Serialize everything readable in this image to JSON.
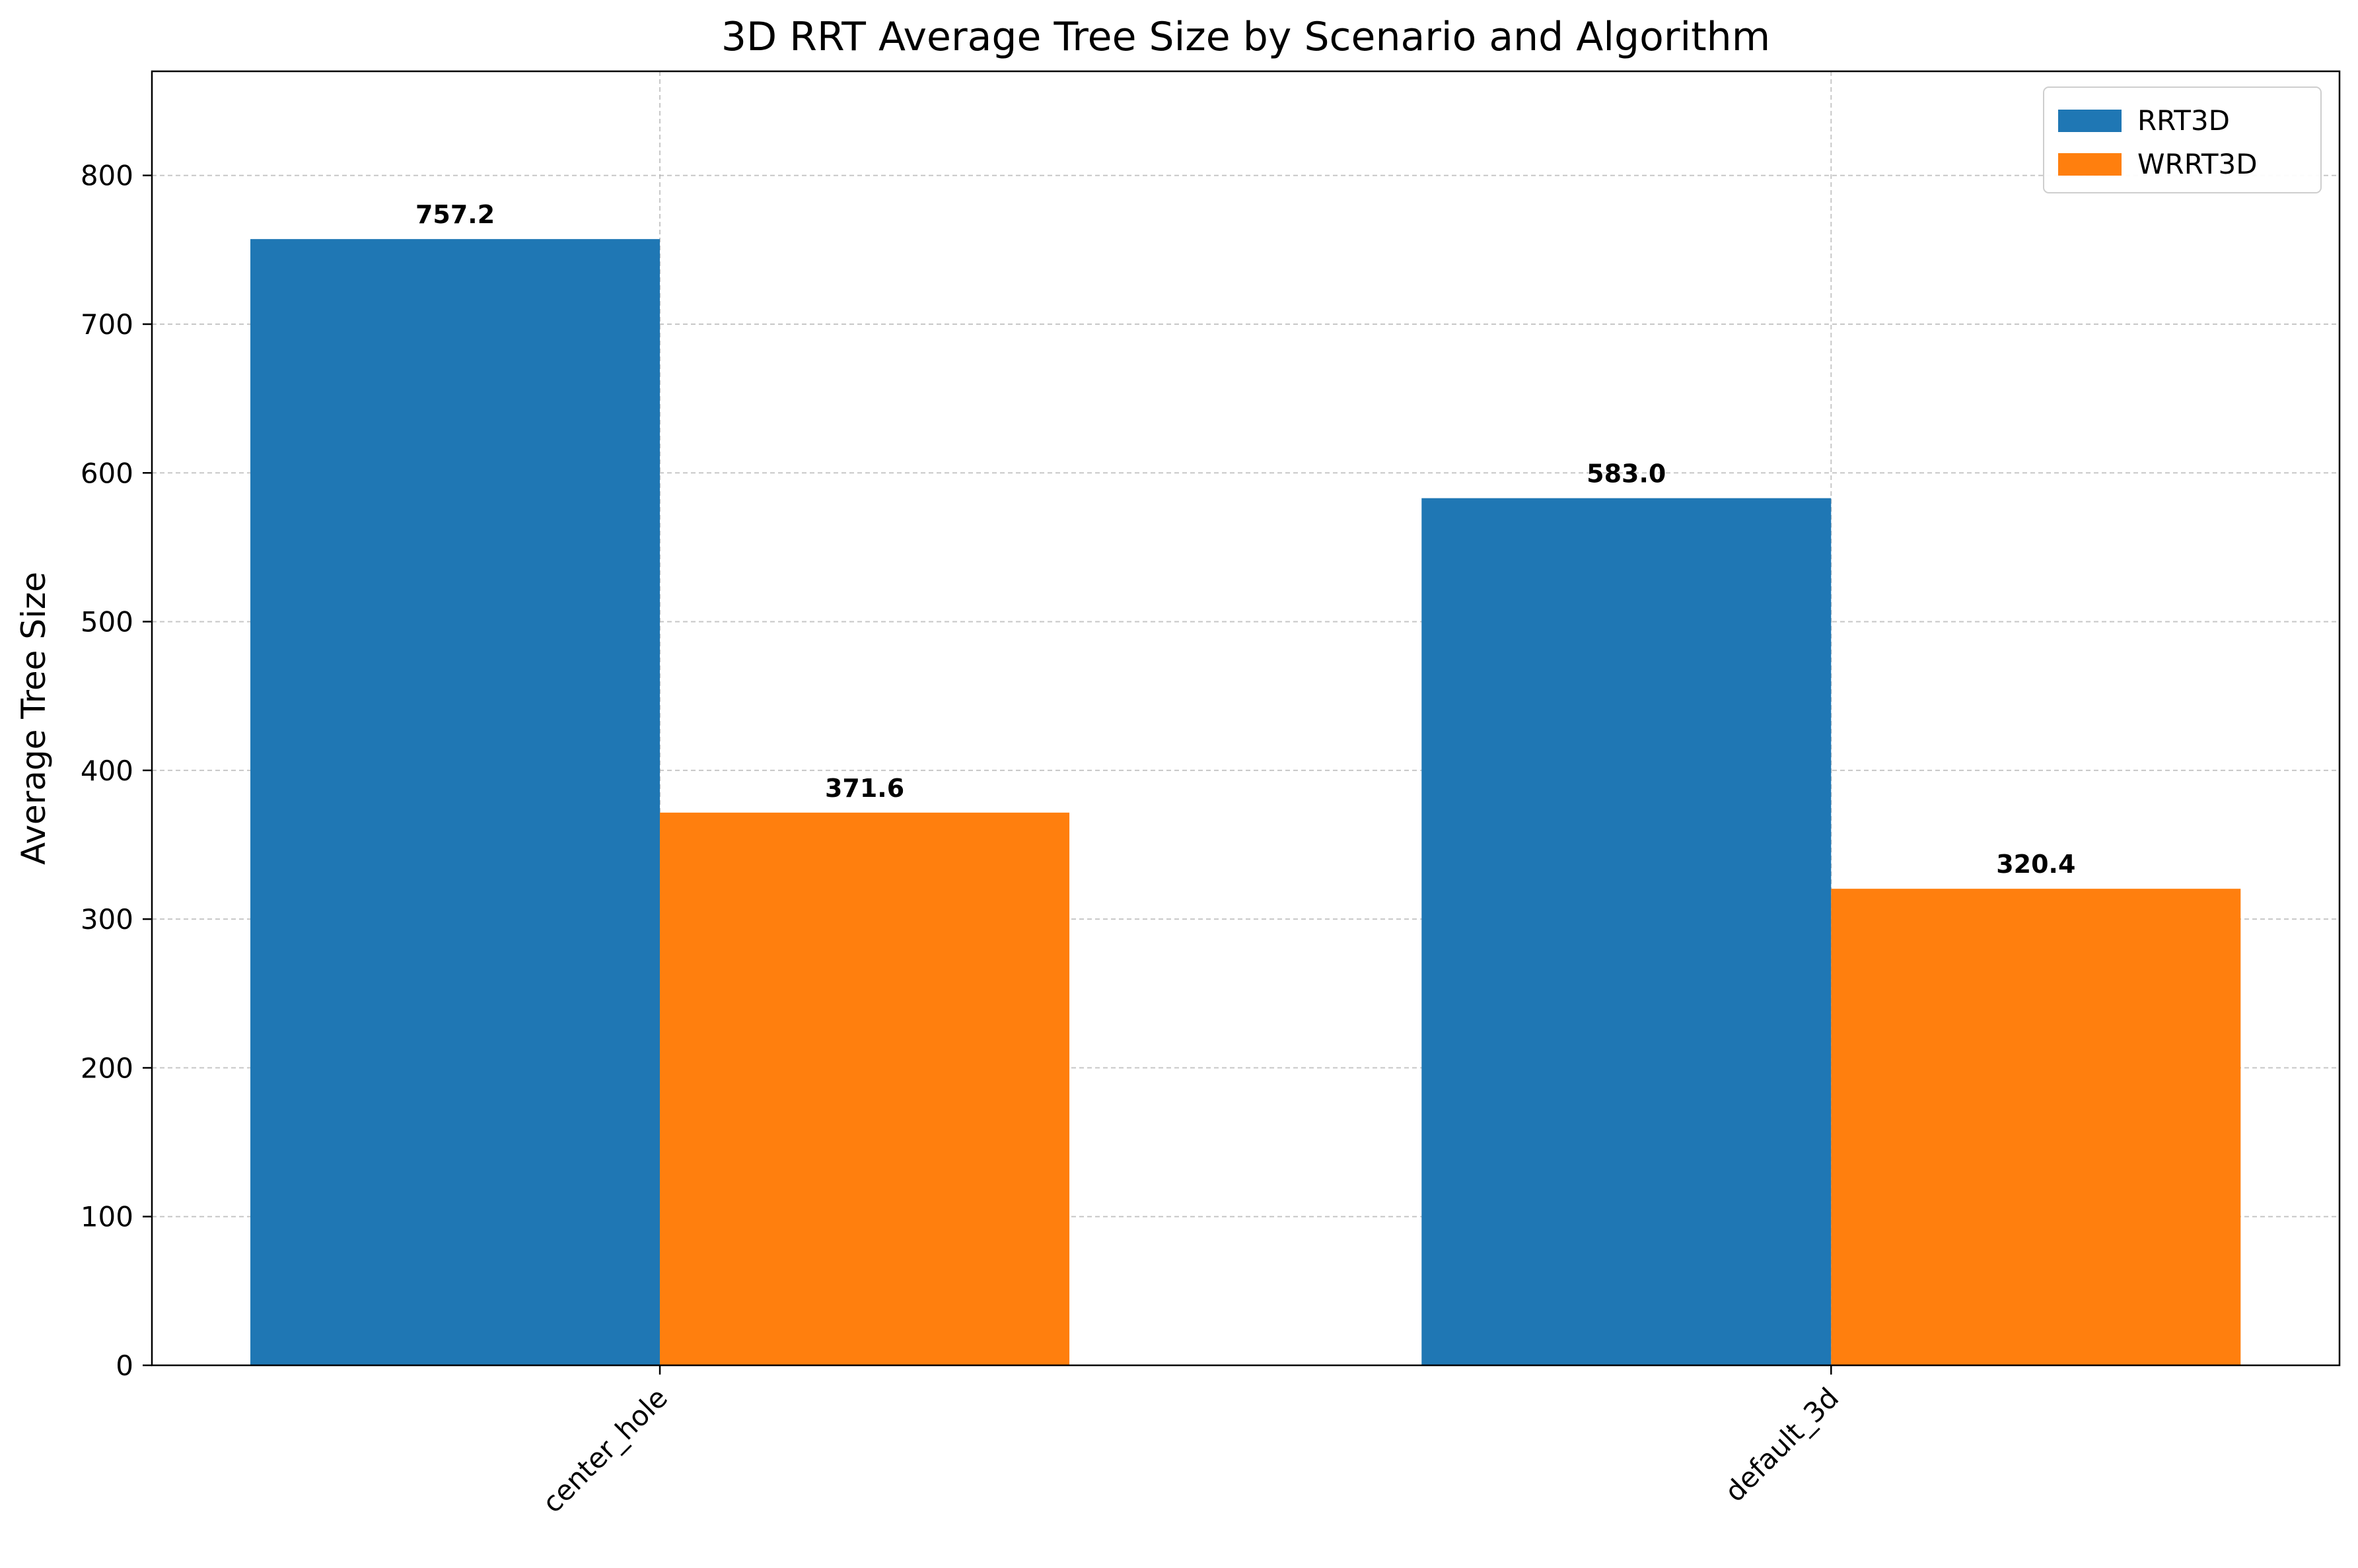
{
  "chart_data": {
    "type": "bar",
    "title": "3D RRT Average Tree Size by Scenario and Algorithm",
    "xlabel": "",
    "ylabel": "Average Tree Size",
    "categories": [
      "center_hole",
      "default_3d"
    ],
    "series": [
      {
        "name": "RRT3D",
        "values": [
          757.2,
          583.0
        ],
        "color": "#1f77b4"
      },
      {
        "name": "WRRT3D",
        "values": [
          371.6,
          320.4
        ],
        "color": "#ff7f0e"
      }
    ],
    "value_labels": [
      [
        "757.2",
        "583.0"
      ],
      [
        "371.6",
        "320.4"
      ]
    ],
    "ylim": [
      0,
      870
    ],
    "yticks": [
      0,
      100,
      200,
      300,
      400,
      500,
      600,
      700,
      800
    ],
    "grid": true,
    "legend_position": "top-right"
  }
}
